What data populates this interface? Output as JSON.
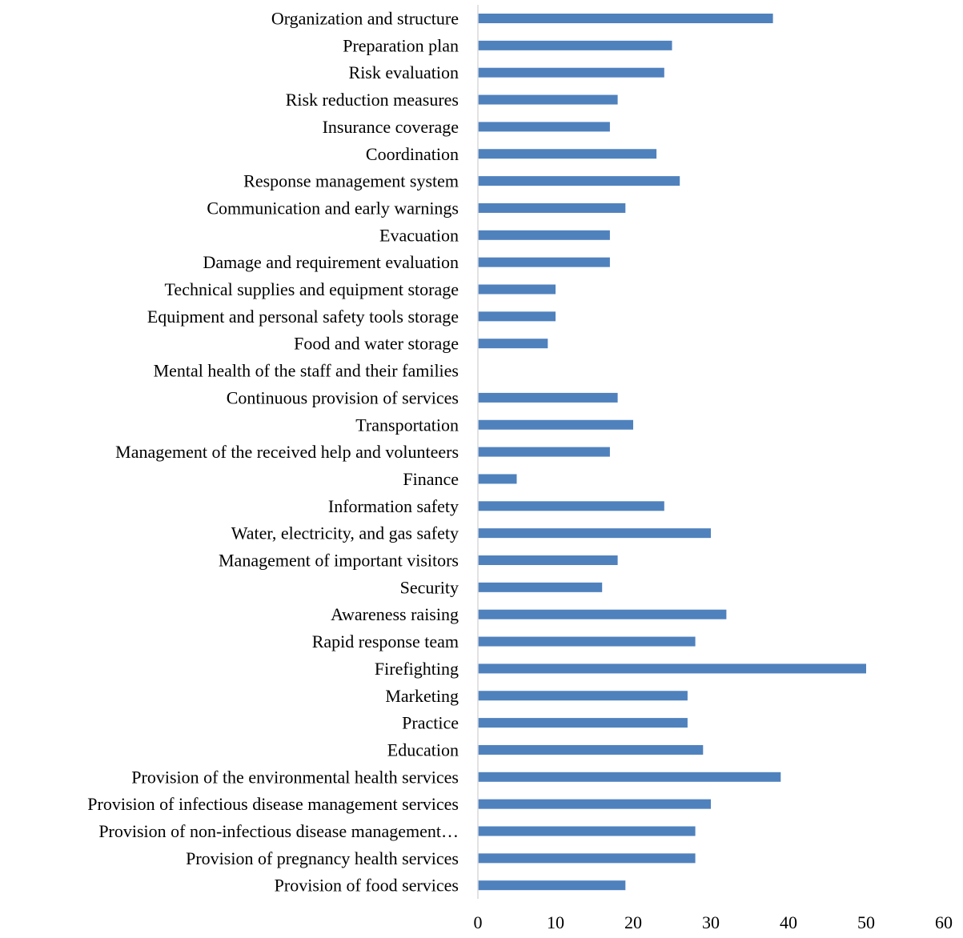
{
  "chart_data": {
    "type": "bar",
    "orientation": "horizontal",
    "categories": [
      "Organization and structure",
      "Preparation plan",
      "Risk evaluation",
      "Risk reduction measures",
      "Insurance coverage",
      "Coordination",
      "Response management system",
      "Communication and early warnings",
      "Evacuation",
      "Damage and requirement evaluation",
      "Technical supplies and equipment storage",
      "Equipment and personal safety tools storage",
      "Food and water storage",
      "Mental health of the staff and their families",
      "Continuous provision of services",
      "Transportation",
      "Management of the received help and volunteers",
      "Finance",
      "Information safety",
      "Water, electricity, and gas safety",
      "Management of important visitors",
      "Security",
      "Awareness raising",
      "Rapid response team",
      "Firefighting",
      "Marketing",
      "Practice",
      "Education",
      "Provision of the environmental health services",
      "Provision of infectious disease management services",
      "Provision of non-infectious disease management…",
      "Provision of pregnancy health services",
      "Provision of food services"
    ],
    "values": [
      38,
      25,
      24,
      18,
      17,
      23,
      26,
      19,
      17,
      17,
      10,
      10,
      9,
      0,
      18,
      20,
      17,
      5,
      24,
      30,
      18,
      16,
      32,
      28,
      50,
      27,
      27,
      29,
      39,
      30,
      28,
      28,
      19
    ],
    "xlim": [
      0,
      60
    ],
    "xticks": [
      0,
      10,
      20,
      30,
      40,
      50,
      60
    ],
    "bar_color": "#4F81BD",
    "grid": false,
    "legend": "none",
    "title": "",
    "xlabel": "",
    "ylabel": ""
  }
}
